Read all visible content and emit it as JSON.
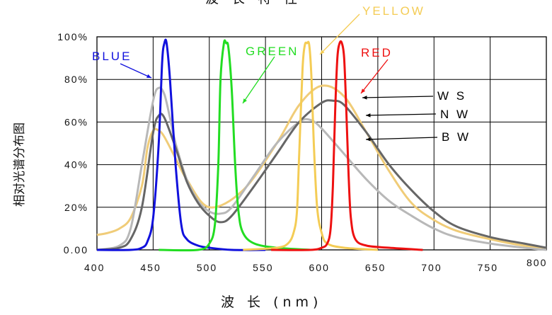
{
  "chart_data": {
    "type": "line",
    "title": "波 长 特 性",
    "xlabel": "波 长 (nm)",
    "ylabel": "相对光谱分布图",
    "xlim": [
      400,
      800
    ],
    "ylim": [
      0,
      100
    ],
    "grid": true,
    "x_ticks": [
      "400",
      "450",
      "500",
      "550",
      "600",
      "650",
      "700",
      "750",
      "800"
    ],
    "y_ticks": [
      "0.00",
      "20%",
      "40%",
      "60%",
      "80%",
      "100%"
    ],
    "colors": {
      "BLUE": "#1111dd",
      "GREEN": "#22dd22",
      "YELLOW": "#f4cc55",
      "RED": "#ee1111",
      "WS": "#f0cc78",
      "NW": "#666666",
      "BW": "#b8b8b8",
      "grid": "#000000"
    },
    "series": [
      {
        "name": "BLUE",
        "x": [
          400,
          430,
          440,
          445,
          450,
          455,
          458,
          460,
          462,
          465,
          470,
          475,
          480,
          490,
          500,
          520,
          550
        ],
        "y": [
          0,
          0,
          1,
          4,
          15,
          50,
          88,
          97,
          97,
          80,
          40,
          12,
          5,
          2,
          1,
          0,
          0
        ]
      },
      {
        "name": "GREEN",
        "x": [
          455,
          490,
          500,
          505,
          508,
          510,
          513,
          515,
          517,
          520,
          523,
          526,
          530,
          540,
          560,
          590
        ],
        "y": [
          0,
          0,
          3,
          12,
          40,
          80,
          97,
          97,
          95,
          75,
          40,
          18,
          8,
          3,
          1,
          0
        ]
      },
      {
        "name": "YELLOW",
        "x": [
          530,
          560,
          570,
          575,
          578,
          580,
          583,
          585,
          587,
          589,
          591,
          593,
          596,
          600,
          605,
          620,
          650
        ],
        "y": [
          0,
          1,
          3,
          8,
          18,
          45,
          85,
          96,
          97,
          96,
          80,
          50,
          20,
          8,
          3,
          1,
          0
        ]
      },
      {
        "name": "RED",
        "x": [
          555,
          590,
          600,
          605,
          608,
          610,
          612,
          614,
          616,
          618,
          620,
          622,
          624,
          626,
          630,
          640,
          660,
          690
        ],
        "y": [
          0,
          0,
          1,
          3,
          10,
          30,
          65,
          90,
          97,
          97,
          90,
          65,
          35,
          15,
          5,
          2,
          1,
          0
        ]
      },
      {
        "name": "WS",
        "x": [
          400,
          410,
          420,
          430,
          440,
          445,
          450,
          455,
          460,
          470,
          480,
          500,
          530,
          560,
          580,
          600,
          620,
          640,
          660,
          680,
          700,
          720,
          750,
          780,
          800
        ],
        "y": [
          7,
          8,
          10,
          15,
          30,
          48,
          56,
          56,
          53,
          43,
          33,
          20,
          28,
          50,
          68,
          77,
          72,
          55,
          37,
          22,
          14,
          9,
          5,
          2,
          1
        ]
      },
      {
        "name": "NW",
        "x": [
          400,
          420,
          430,
          440,
          450,
          455,
          460,
          470,
          480,
          490,
          500,
          510,
          520,
          540,
          560,
          580,
          600,
          610,
          620,
          640,
          660,
          680,
          700,
          720,
          750,
          780,
          800
        ],
        "y": [
          0,
          1,
          5,
          20,
          55,
          63,
          62,
          48,
          32,
          22,
          16,
          13,
          16,
          30,
          45,
          60,
          69,
          70,
          68,
          55,
          40,
          28,
          18,
          11,
          6,
          3,
          1
        ]
      },
      {
        "name": "BW",
        "x": [
          400,
          420,
          430,
          440,
          450,
          455,
          460,
          465,
          470,
          480,
          490,
          500,
          510,
          520,
          540,
          560,
          580,
          590,
          600,
          620,
          640,
          660,
          680,
          700,
          720,
          750,
          780,
          800
        ],
        "y": [
          0,
          2,
          10,
          40,
          70,
          76,
          73,
          62,
          50,
          33,
          23,
          18,
          17,
          20,
          35,
          50,
          60,
          61,
          57,
          45,
          33,
          23,
          16,
          10,
          6,
          3,
          1,
          0
        ]
      }
    ],
    "annotations": [
      {
        "text": "BLUE",
        "color": "#1111dd"
      },
      {
        "text": "GREEN",
        "color": "#22dd22"
      },
      {
        "text": "YELLOW",
        "color": "#f4cc55"
      },
      {
        "text": "RED",
        "color": "#ee1111"
      },
      {
        "text": "W S",
        "color": "#000000"
      },
      {
        "text": "N W",
        "color": "#000000"
      },
      {
        "text": "B W",
        "color": "#000000"
      }
    ]
  }
}
